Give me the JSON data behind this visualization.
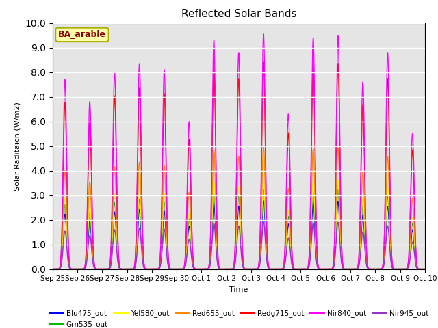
{
  "title": "Reflected Solar Bands",
  "xlabel": "Time",
  "ylabel": "Solar Raditaion (W/m2)",
  "annotation": "BA_arable",
  "ylim": [
    0,
    10.0
  ],
  "yticks": [
    0.0,
    1.0,
    2.0,
    3.0,
    4.0,
    5.0,
    6.0,
    7.0,
    8.0,
    9.0,
    10.0
  ],
  "nir840_peaks": [
    7.7,
    6.8,
    8.0,
    8.35,
    8.1,
    6.0,
    9.3,
    8.8,
    9.55,
    6.3,
    9.4,
    9.5,
    7.6,
    8.8,
    5.5
  ],
  "scales": [
    0.29,
    0.34,
    0.38,
    0.52,
    0.88,
    1.0,
    0.2
  ],
  "band_names": [
    "Blu475_out",
    "Grn535_out",
    "Yel580_out",
    "Red655_out",
    "Redg715_out",
    "Nir840_out",
    "Nir945_out"
  ],
  "band_colors": [
    "#0000ff",
    "#00bb00",
    "#ffff00",
    "#ff8800",
    "#ff0000",
    "#ff00ff",
    "#9933cc"
  ],
  "n_days": 15,
  "background_color": "#e5e5e5"
}
